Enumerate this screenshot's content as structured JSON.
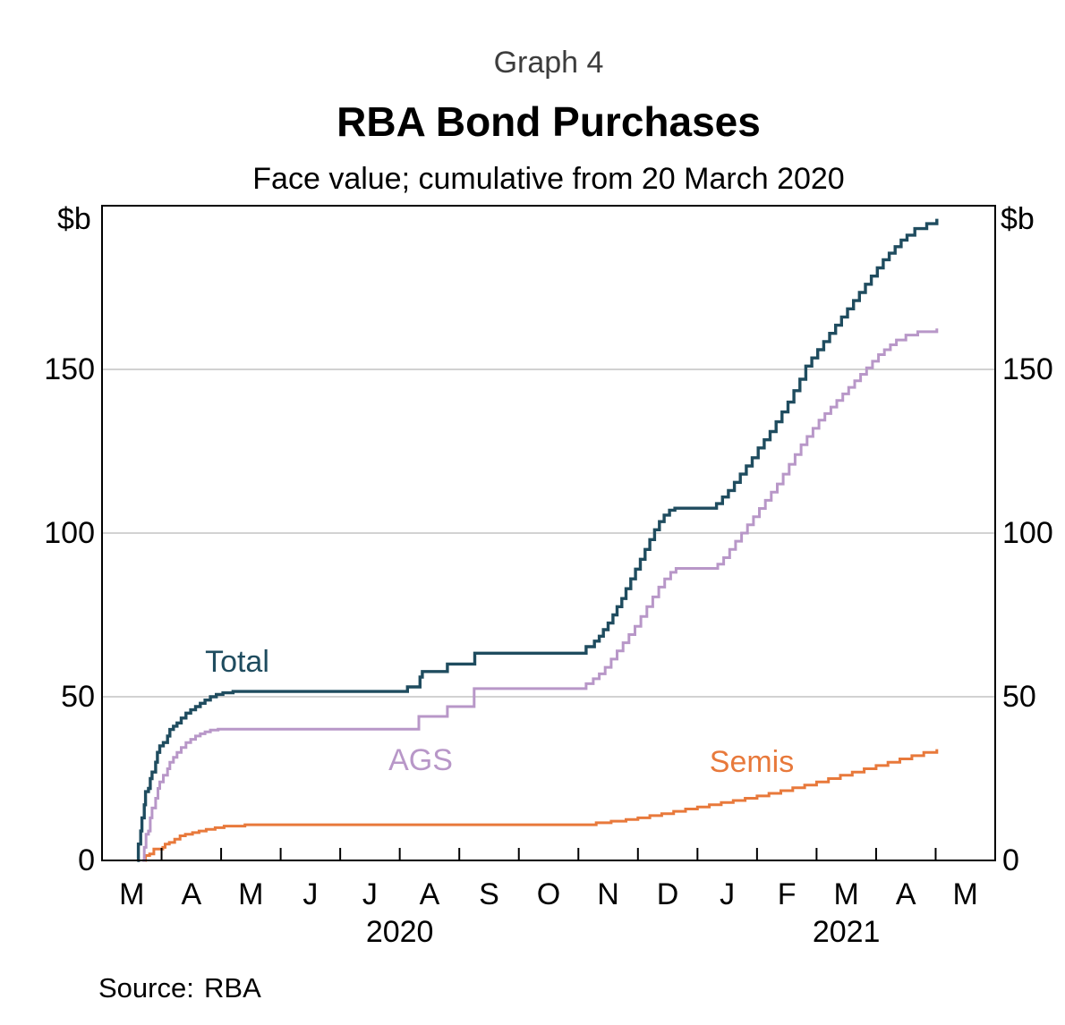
{
  "header": {
    "graph_number": "Graph 4",
    "title": "RBA Bond Purchases",
    "subtitle": "Face value; cumulative from 20 March 2020"
  },
  "footer": {
    "source_label": "Source:",
    "source_value": "RBA"
  },
  "chart_data": {
    "type": "line",
    "title": "RBA Bond Purchases",
    "subtitle": "Face value; cumulative from 20 March 2020",
    "unit_label": "$b",
    "x_axis": {
      "start": "March 2020",
      "end": "May 2021",
      "months_total": 15,
      "month_labels": [
        "M",
        "A",
        "M",
        "J",
        "J",
        "A",
        "S",
        "O",
        "N",
        "D",
        "J",
        "F",
        "M",
        "A",
        "M"
      ],
      "year_labels": [
        {
          "text": "2020",
          "month_center": 5
        },
        {
          "text": "2021",
          "month_center": 12.5
        }
      ]
    },
    "y_axis": {
      "min": 0,
      "max": 200,
      "ticks": [
        0,
        50,
        100,
        150
      ],
      "unit": "$b",
      "mirrored_right": true
    },
    "grid": {
      "y_gridlines": [
        50,
        100,
        150
      ],
      "gridline_color": "#c4c4c4"
    },
    "axis_color": "#000000",
    "interpolation": "step-after",
    "series": [
      {
        "name": "Semis",
        "color": "#E8793B",
        "stroke_width": 3,
        "points": [
          [
            0.7,
            0
          ],
          [
            0.73,
            1.5
          ],
          [
            0.8,
            2
          ],
          [
            0.87,
            3.5
          ],
          [
            1.02,
            4
          ],
          [
            1.06,
            5
          ],
          [
            1.13,
            5.5
          ],
          [
            1.22,
            6.5
          ],
          [
            1.31,
            7.5
          ],
          [
            1.4,
            8
          ],
          [
            1.52,
            8.5
          ],
          [
            1.63,
            9
          ],
          [
            1.75,
            9.5
          ],
          [
            1.9,
            10
          ],
          [
            2.05,
            10.5
          ],
          [
            2.4,
            10.9
          ],
          [
            8.3,
            11.5
          ],
          [
            8.55,
            12
          ],
          [
            8.8,
            12.5
          ],
          [
            9.0,
            13
          ],
          [
            9.2,
            13.7
          ],
          [
            9.4,
            14.3
          ],
          [
            9.6,
            15
          ],
          [
            9.8,
            15.7
          ],
          [
            10.0,
            16.3
          ],
          [
            10.2,
            17
          ],
          [
            10.4,
            17.7
          ],
          [
            10.6,
            18.3
          ],
          [
            10.8,
            19
          ],
          [
            11.0,
            19.7
          ],
          [
            11.2,
            20.5
          ],
          [
            11.4,
            21.3
          ],
          [
            11.6,
            22.2
          ],
          [
            11.8,
            23
          ],
          [
            12.0,
            24
          ],
          [
            12.2,
            25
          ],
          [
            12.4,
            26
          ],
          [
            12.6,
            27
          ],
          [
            12.8,
            28
          ],
          [
            13.0,
            29
          ],
          [
            13.2,
            30
          ],
          [
            13.4,
            31
          ],
          [
            13.6,
            32
          ],
          [
            13.8,
            33
          ],
          [
            14.02,
            34
          ]
        ]
      },
      {
        "name": "AGS",
        "color": "#B897C8",
        "stroke_width": 3,
        "points": [
          [
            0.68,
            0
          ],
          [
            0.71,
            4
          ],
          [
            0.74,
            8
          ],
          [
            0.78,
            9
          ],
          [
            0.81,
            13
          ],
          [
            0.84,
            16
          ],
          [
            0.9,
            19
          ],
          [
            0.94,
            22
          ],
          [
            0.97,
            24
          ],
          [
            1.03,
            26
          ],
          [
            1.1,
            28
          ],
          [
            1.14,
            30
          ],
          [
            1.2,
            31.5
          ],
          [
            1.26,
            33
          ],
          [
            1.33,
            34.5
          ],
          [
            1.41,
            36
          ],
          [
            1.49,
            37
          ],
          [
            1.57,
            38
          ],
          [
            1.65,
            38.7
          ],
          [
            1.73,
            39.3
          ],
          [
            1.82,
            39.8
          ],
          [
            1.95,
            40.1
          ],
          [
            5.32,
            44
          ],
          [
            5.8,
            47
          ],
          [
            6.25,
            52.5
          ],
          [
            8.13,
            54
          ],
          [
            8.25,
            55.5
          ],
          [
            8.35,
            57
          ],
          [
            8.45,
            59
          ],
          [
            8.55,
            61.5
          ],
          [
            8.65,
            64
          ],
          [
            8.75,
            66.5
          ],
          [
            8.85,
            69
          ],
          [
            8.95,
            71.5
          ],
          [
            9.05,
            74.5
          ],
          [
            9.15,
            77.5
          ],
          [
            9.25,
            80.5
          ],
          [
            9.35,
            83.5
          ],
          [
            9.45,
            86
          ],
          [
            9.55,
            88
          ],
          [
            9.64,
            89.2
          ],
          [
            10.34,
            90.5
          ],
          [
            10.44,
            92.5
          ],
          [
            10.54,
            95
          ],
          [
            10.64,
            97.5
          ],
          [
            10.74,
            100
          ],
          [
            10.84,
            102.5
          ],
          [
            10.94,
            105
          ],
          [
            11.04,
            107.5
          ],
          [
            11.14,
            110
          ],
          [
            11.24,
            112.5
          ],
          [
            11.34,
            115
          ],
          [
            11.44,
            118
          ],
          [
            11.54,
            121
          ],
          [
            11.64,
            124
          ],
          [
            11.74,
            127
          ],
          [
            11.84,
            129.5
          ],
          [
            11.94,
            132
          ],
          [
            12.04,
            134.5
          ],
          [
            12.14,
            136.5
          ],
          [
            12.24,
            138.5
          ],
          [
            12.34,
            140.5
          ],
          [
            12.44,
            142.5
          ],
          [
            12.54,
            144.5
          ],
          [
            12.64,
            146.5
          ],
          [
            12.74,
            148.5
          ],
          [
            12.84,
            150.5
          ],
          [
            12.94,
            152.5
          ],
          [
            13.04,
            154.5
          ],
          [
            13.14,
            156
          ],
          [
            13.24,
            157.5
          ],
          [
            13.34,
            159
          ],
          [
            13.5,
            160.5
          ],
          [
            13.7,
            161.5
          ],
          [
            14.02,
            162.5
          ]
        ]
      },
      {
        "name": "Total",
        "color": "#1F4C5F",
        "stroke_width": 3.4,
        "points": [
          [
            0.59,
            0
          ],
          [
            0.61,
            5
          ],
          [
            0.65,
            9
          ],
          [
            0.67,
            13
          ],
          [
            0.71,
            17
          ],
          [
            0.73,
            21
          ],
          [
            0.78,
            22
          ],
          [
            0.81,
            25
          ],
          [
            0.84,
            27
          ],
          [
            0.9,
            30
          ],
          [
            0.93,
            33
          ],
          [
            0.97,
            35
          ],
          [
            1.03,
            36
          ],
          [
            1.1,
            38
          ],
          [
            1.14,
            40
          ],
          [
            1.2,
            41
          ],
          [
            1.26,
            42
          ],
          [
            1.33,
            43.5
          ],
          [
            1.41,
            45
          ],
          [
            1.49,
            46
          ],
          [
            1.57,
            47
          ],
          [
            1.65,
            48
          ],
          [
            1.73,
            49
          ],
          [
            1.82,
            50
          ],
          [
            1.92,
            50.7
          ],
          [
            2.03,
            51.2
          ],
          [
            2.2,
            51.6
          ],
          [
            5.13,
            53
          ],
          [
            5.34,
            56
          ],
          [
            5.38,
            57.7
          ],
          [
            5.8,
            60
          ],
          [
            6.26,
            63.3
          ],
          [
            8.13,
            65.3
          ],
          [
            8.27,
            67
          ],
          [
            8.35,
            68.5
          ],
          [
            8.42,
            70.5
          ],
          [
            8.5,
            72.5
          ],
          [
            8.58,
            75
          ],
          [
            8.65,
            77.5
          ],
          [
            8.73,
            80
          ],
          [
            8.8,
            83
          ],
          [
            8.88,
            86
          ],
          [
            8.96,
            89
          ],
          [
            9.04,
            92
          ],
          [
            9.12,
            95
          ],
          [
            9.2,
            98
          ],
          [
            9.28,
            101
          ],
          [
            9.36,
            103.5
          ],
          [
            9.44,
            105.5
          ],
          [
            9.53,
            107
          ],
          [
            9.62,
            107.6
          ],
          [
            10.32,
            109
          ],
          [
            10.42,
            111
          ],
          [
            10.52,
            113
          ],
          [
            10.62,
            115.5
          ],
          [
            10.72,
            118
          ],
          [
            10.82,
            120.5
          ],
          [
            10.92,
            123
          ],
          [
            11.02,
            126
          ],
          [
            11.12,
            128.5
          ],
          [
            11.22,
            131
          ],
          [
            11.32,
            134
          ],
          [
            11.42,
            137
          ],
          [
            11.52,
            140
          ],
          [
            11.62,
            143.5
          ],
          [
            11.72,
            147
          ],
          [
            11.82,
            151
          ],
          [
            11.92,
            153.5
          ],
          [
            12.02,
            156
          ],
          [
            12.12,
            158.5
          ],
          [
            12.22,
            161
          ],
          [
            12.32,
            163.5
          ],
          [
            12.42,
            166
          ],
          [
            12.52,
            168.5
          ],
          [
            12.62,
            171
          ],
          [
            12.72,
            173.5
          ],
          [
            12.82,
            176
          ],
          [
            12.92,
            178.5
          ],
          [
            13.02,
            181
          ],
          [
            13.12,
            183.5
          ],
          [
            13.22,
            185.5
          ],
          [
            13.32,
            187.5
          ],
          [
            13.42,
            189.5
          ],
          [
            13.52,
            191
          ],
          [
            13.65,
            193
          ],
          [
            13.85,
            194.5
          ],
          [
            14.02,
            196
          ]
        ]
      }
    ],
    "series_labels_on_chart": [
      "Total",
      "AGS",
      "Semis"
    ],
    "final_values": {
      "Total": 196,
      "AGS": 162.5,
      "Semis": 34
    }
  }
}
